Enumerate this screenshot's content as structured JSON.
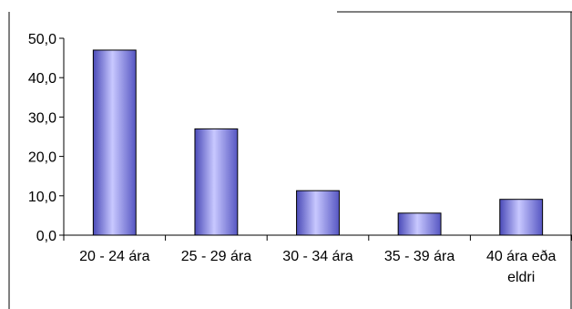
{
  "chart_data": {
    "type": "bar",
    "title": "",
    "xlabel": "",
    "ylabel": "",
    "categories": [
      "20 - 24 ára",
      "25 - 29 ára",
      "30 - 34 ára",
      "35 - 39 ára",
      "40 ára eða eldri"
    ],
    "values": [
      47.0,
      27.0,
      11.3,
      5.6,
      9.1
    ],
    "ylim": [
      0,
      50
    ],
    "yticks": [
      "0,0",
      "10,0",
      "20,0",
      "30,0",
      "40,0",
      "50,0"
    ],
    "grid": false,
    "legend": "none",
    "bar_color": "#8f8fe6",
    "bar_edge_color": "#000000"
  }
}
